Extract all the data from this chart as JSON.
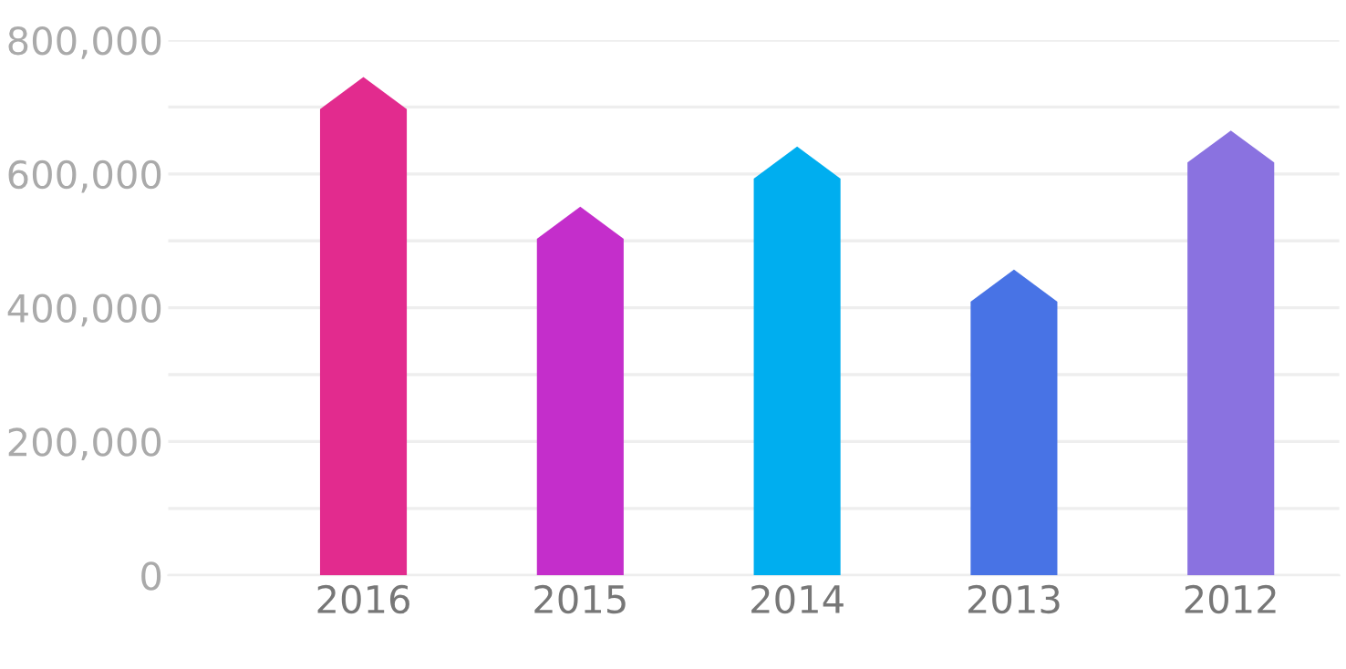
{
  "chart_data": {
    "type": "bar",
    "categories": [
      "2016",
      "2015",
      "2014",
      "2013",
      "2012"
    ],
    "values": [
      745000,
      551000,
      641000,
      457000,
      665000
    ],
    "colors": [
      "#e22b8e",
      "#c42ecb",
      "#00aeef",
      "#4873e5",
      "#8a72e0"
    ],
    "ylim": [
      0,
      800000
    ],
    "yticks": [
      0,
      {
        "value": 100000,
        "label": null
      },
      {
        "value": 200000,
        "label": "200,000"
      },
      {
        "value": 300000,
        "label": null
      },
      {
        "value": 400000,
        "label": "400,000"
      },
      {
        "value": 500000,
        "label": null
      },
      {
        "value": 600000,
        "label": "600,000"
      },
      {
        "value": 700000,
        "label": null
      },
      {
        "value": 800000,
        "label": "800,000"
      }
    ],
    "grid": "y"
  }
}
